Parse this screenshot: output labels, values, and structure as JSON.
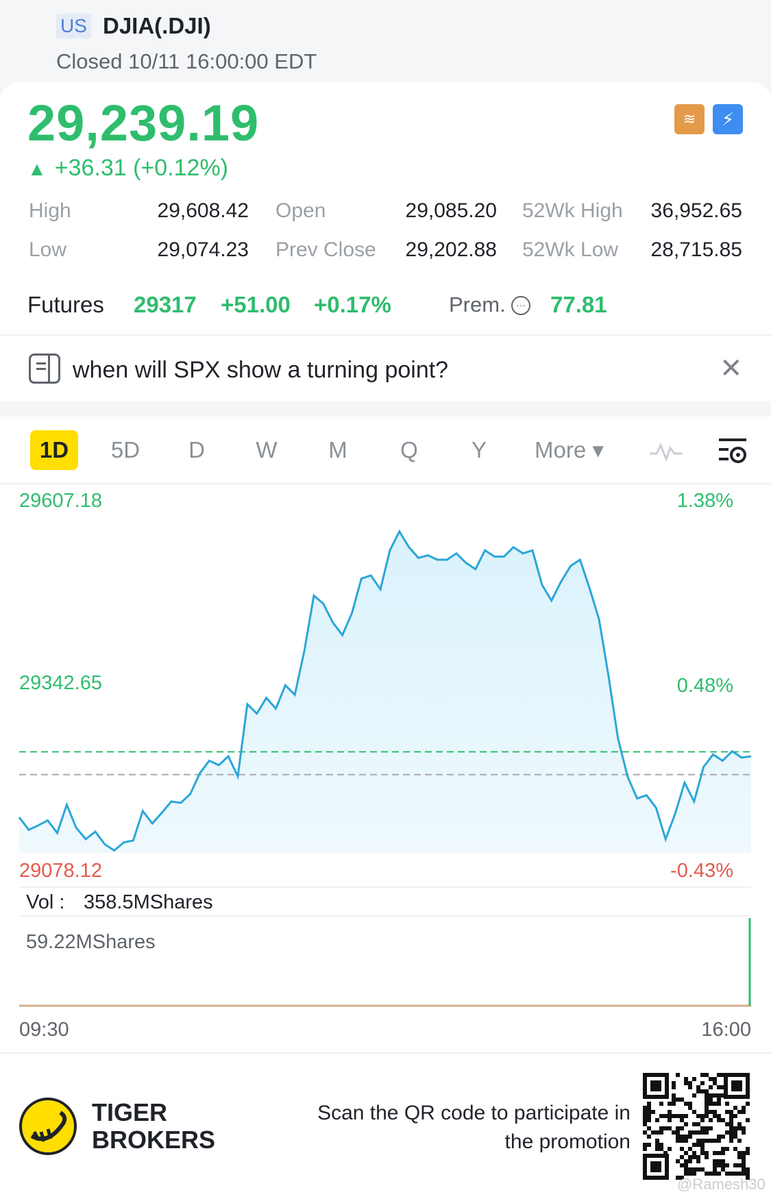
{
  "header": {
    "market": "US",
    "ticker": "DJIA(.DJI)",
    "status": "Closed 10/11 16:00:00 EDT"
  },
  "quote": {
    "price": "29,239.19",
    "change": "+36.31 (+0.12%)",
    "direction_icon": "triangle-up-icon",
    "colors": {
      "up": "#2fbd6d",
      "down": "#e25a4c",
      "accent": "#ffde00"
    }
  },
  "stats": [
    {
      "label": "High",
      "value": "29,608.42"
    },
    {
      "label": "Open",
      "value": "29,085.20"
    },
    {
      "label": "52Wk High",
      "value": "36,952.65"
    },
    {
      "label": "Low",
      "value": "29,074.23"
    },
    {
      "label": "Prev Close",
      "value": "29,202.88"
    },
    {
      "label": "52Wk Low",
      "value": "28,715.85"
    }
  ],
  "futures": {
    "label": "Futures",
    "price": "29317",
    "change": "+51.00",
    "change_pct": "+0.17%",
    "prem_label": "Prem.",
    "prem_value": "77.81"
  },
  "question": {
    "text": "when will SPX show a turning point?",
    "close": "✕"
  },
  "tabs": {
    "items": [
      "1D",
      "5D",
      "D",
      "W",
      "M",
      "Q",
      "Y"
    ],
    "active": "1D",
    "more": "More ▾"
  },
  "chart_data": {
    "type": "area",
    "y_top_label": "29607.18",
    "y_mid_label": "29342.65",
    "y_bottom_label": "29078.12",
    "pct_top": "1.38%",
    "pct_mid": "0.48%",
    "pct_bottom": "-0.43%",
    "ylim": [
      29078.12,
      29607.18
    ],
    "prev_close": 29202.88,
    "current": 29239.19,
    "x_start": "09:30",
    "x_end": "16:00",
    "values": [
      29135,
      29115,
      29122,
      29130,
      29110,
      29155,
      29118,
      29100,
      29112,
      29092,
      29082,
      29095,
      29098,
      29145,
      29125,
      29142,
      29160,
      29158,
      29172,
      29205,
      29225,
      29218,
      29232,
      29200,
      29315,
      29300,
      29325,
      29308,
      29345,
      29330,
      29400,
      29488,
      29475,
      29445,
      29425,
      29460,
      29515,
      29520,
      29498,
      29560,
      29590,
      29565,
      29548,
      29552,
      29545,
      29545,
      29555,
      29540,
      29530,
      29560,
      29550,
      29550,
      29565,
      29555,
      29560,
      29505,
      29480,
      29510,
      29535,
      29545,
      29500,
      29450,
      29360,
      29260,
      29200,
      29165,
      29170,
      29150,
      29100,
      29140,
      29190,
      29160,
      29215,
      29235,
      29225,
      29240,
      29230,
      29232
    ],
    "volume_label": "Vol :",
    "volume_total": "358.5MShares",
    "volume_max_label": "59.22MShares",
    "volume_last_fraction": 1.0
  },
  "footer": {
    "brand": "TIGER\nBROKERS",
    "promo": "Scan the QR code to participate in the promotion",
    "watermark": "@Ramesh30"
  }
}
